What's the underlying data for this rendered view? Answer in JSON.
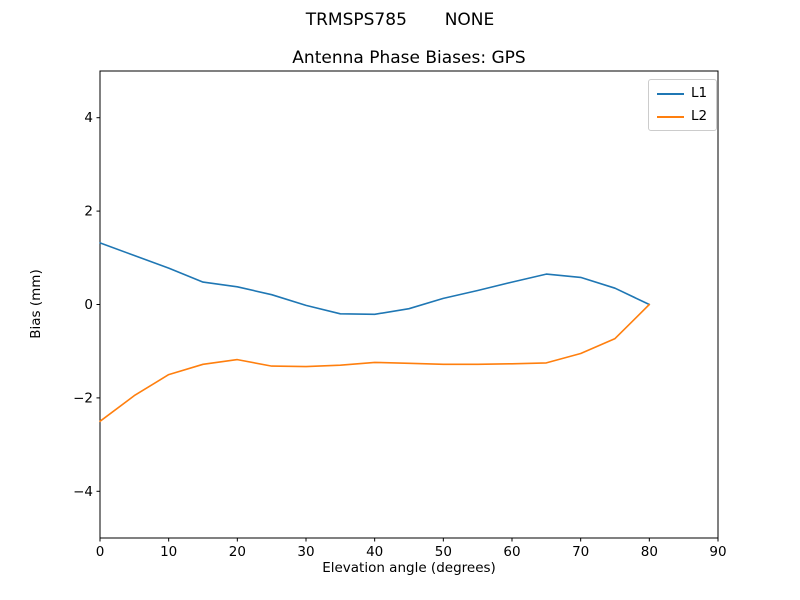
{
  "figure": {
    "suptitle": "TRMSPS785       NONE",
    "title": "Antenna Phase Biases: GPS"
  },
  "chart_data": {
    "type": "line",
    "suptitle": "TRMSPS785       NONE",
    "title": "Antenna Phase Biases: GPS",
    "xlabel": "Elevation angle (degrees)",
    "ylabel": "Bias (mm)",
    "xlim": [
      0,
      90
    ],
    "ylim": [
      -5,
      5
    ],
    "xticks": [
      0,
      10,
      20,
      30,
      40,
      50,
      60,
      70,
      80,
      90
    ],
    "yticks": [
      -4,
      -2,
      0,
      2,
      4
    ],
    "grid": false,
    "legend_position": "upper right",
    "x": [
      0,
      5,
      10,
      15,
      20,
      25,
      30,
      35,
      40,
      45,
      50,
      55,
      60,
      65,
      70,
      75,
      80
    ],
    "series": [
      {
        "name": "L1",
        "color": "#1f77b4",
        "values": [
          1.32,
          1.05,
          0.78,
          0.48,
          0.38,
          0.21,
          -0.02,
          -0.2,
          -0.21,
          -0.09,
          0.13,
          0.3,
          0.48,
          0.65,
          0.58,
          0.35,
          0.0
        ]
      },
      {
        "name": "L2",
        "color": "#ff7f0e",
        "values": [
          -2.5,
          -1.95,
          -1.5,
          -1.28,
          -1.18,
          -1.32,
          -1.33,
          -1.3,
          -1.24,
          -1.26,
          -1.28,
          -1.28,
          -1.27,
          -1.25,
          -1.05,
          -0.73,
          0.0
        ]
      }
    ],
    "colors": {
      "axes": "#000000",
      "legend_border": "#cccccc",
      "background": "#ffffff"
    }
  }
}
